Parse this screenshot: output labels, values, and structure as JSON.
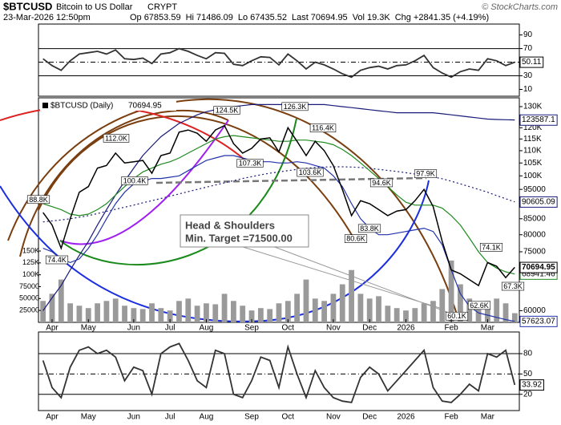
{
  "header": {
    "symbol": "$BTCUSD",
    "name": "Bitcoin to US Dollar",
    "exchange": "CRYPT",
    "copyright": "© StockCharts.com",
    "date": "23-Mar-2026 12:50pm",
    "fields": [
      {
        "label": "Op",
        "value": 67853.59
      },
      {
        "label": "Hi",
        "value": 71486.09
      },
      {
        "label": "Lo",
        "value": 67435.52
      },
      {
        "label": "Last",
        "value": 70694.95
      },
      {
        "label": "Vol",
        "value": "19.3K"
      },
      {
        "label": "Chg",
        "value": "+2841.35 (+4.19%)"
      }
    ]
  },
  "chart_data": [
    {
      "type": "line",
      "log": true,
      "categories": [
        null,
        "Apr",
        null,
        null,
        null,
        "May",
        null,
        null,
        null,
        null,
        "Jun",
        null,
        null,
        null,
        "Jul",
        null,
        null,
        null,
        "Aug",
        null,
        null,
        null,
        null,
        "Sep",
        null,
        null,
        null,
        "Oct",
        null,
        null,
        null,
        null,
        "Nov",
        null,
        null,
        null,
        "Dec",
        null,
        null,
        null,
        "2026",
        null,
        null,
        null,
        null,
        "Feb",
        null,
        null,
        null,
        "Mar",
        null,
        null,
        null
      ],
      "series": [
        {
          "name": "$BTCUSD (Daily)",
          "color": "#000000",
          "values": [
            87000,
            83000,
            76000,
            85000,
            94000,
            96000,
            103000,
            104000,
            109000,
            105000,
            105500,
            106000,
            101000,
            108000,
            109000,
            118000,
            119000,
            117500,
            114000,
            119000,
            121000,
            113000,
            109000,
            111000,
            115000,
            115500,
            109500,
            120000,
            114000,
            108000,
            114000,
            110000,
            104000,
            95000,
            86000,
            91000,
            90000,
            88000,
            86000,
            87500,
            88000,
            91000,
            95000,
            89000,
            78000,
            70000,
            69000,
            67500,
            66000,
            72000,
            71000,
            68000,
            70694.95
          ]
        }
      ],
      "overlays": [
        {
          "color": "#1a1a7a",
          "style": "solid",
          "values": [
            60000,
            63000,
            66000,
            70000,
            74000,
            78000,
            83000,
            88000,
            93000,
            98000,
            103000,
            108000,
            112000,
            116000,
            119000,
            122000,
            124000,
            126000,
            127500,
            128500,
            129500,
            130000,
            130500,
            131000,
            131000,
            131000,
            131000,
            131000,
            131000,
            131000,
            131000,
            131000,
            130500,
            130000,
            129500,
            129000,
            128500,
            128000,
            127500,
            127000,
            127000,
            127000,
            127000,
            127000,
            126500,
            126000,
            125500,
            125000,
            124500,
            124000,
            123800,
            123700,
            123587.1
          ]
        },
        {
          "color": "#1a1a7a",
          "style": "dotted",
          "values": [
            84000,
            84300,
            84600,
            85000,
            85500,
            86000,
            86700,
            87400,
            88100,
            88800,
            89500,
            90300,
            91000,
            91800,
            92600,
            93400,
            94200,
            95000,
            95800,
            96600,
            97400,
            98200,
            99000,
            99700,
            100400,
            101000,
            101500,
            102000,
            102500,
            102900,
            103200,
            103400,
            103500,
            103500,
            103400,
            103200,
            102900,
            102500,
            102100,
            101700,
            101200,
            100700,
            100200,
            99600,
            98900,
            98000,
            97000,
            96000,
            95000,
            94000,
            92800,
            91700,
            90605.09
          ]
        },
        {
          "color": "#1f8a1f",
          "style": "solid",
          "values": [
            90000,
            89000,
            88000,
            86500,
            86000,
            86500,
            88000,
            90000,
            93000,
            96000,
            99000,
            101500,
            103000,
            104500,
            105500,
            107000,
            109000,
            111000,
            113000,
            115000,
            116000,
            116500,
            116000,
            115500,
            115000,
            114500,
            114000,
            114000,
            114500,
            114500,
            114000,
            113500,
            112500,
            110500,
            108000,
            105000,
            102000,
            99000,
            96000,
            93000,
            90500,
            89500,
            89500,
            89500,
            88500,
            86000,
            83000,
            79000,
            75000,
            72000,
            70500,
            69500,
            68941.46
          ]
        },
        {
          "color": "#2233aa",
          "style": "solid",
          "values": [
            76000,
            75000,
            73000,
            72000,
            73000,
            76000,
            80000,
            85000,
            90000,
            94000,
            97000,
            98000,
            99000,
            99000,
            99500,
            100000,
            102000,
            104000,
            106000,
            107000,
            108000,
            108000,
            107000,
            106000,
            105500,
            105500,
            105000,
            105000,
            105500,
            105000,
            104000,
            103000,
            100000,
            96000,
            90000,
            85000,
            82000,
            80000,
            80000,
            80500,
            81000,
            81500,
            82000,
            81000,
            77000,
            70000,
            64000,
            61000,
            59500,
            59000,
            58500,
            58000,
            57623.07
          ]
        }
      ],
      "volume": {
        "color": "#9a9a9a",
        "values": [
          45000,
          60000,
          90000,
          40000,
          35000,
          30000,
          40000,
          45000,
          50000,
          35000,
          30000,
          28000,
          40000,
          30000,
          25000,
          45000,
          50000,
          35000,
          40000,
          38000,
          60000,
          45000,
          35000,
          25000,
          30000,
          28000,
          40000,
          45000,
          60000,
          90000,
          50000,
          45000,
          60000,
          80000,
          110000,
          60000,
          50000,
          55000,
          35000,
          30000,
          25000,
          30000,
          40000,
          45000,
          70000,
          130000,
          80000,
          50000,
          40000,
          45000,
          50000,
          40000,
          19300
        ],
        "ylim": [
          0,
          472000
        ],
        "yticks": [
          {
            "value": 150000,
            "label": "150K"
          },
          {
            "value": 125000,
            "label": "125K"
          },
          {
            "value": 100000,
            "label": "100K"
          },
          75000,
          50000,
          25000
        ]
      },
      "ylim": [
        57400,
        134400
      ],
      "yticks": [
        {
          "value": 130000,
          "label": "130K"
        },
        {
          "value": 120000,
          "label": "120K"
        },
        {
          "value": 115000,
          "label": "115K"
        },
        {
          "value": 110000,
          "label": "110K"
        },
        {
          "value": 105000,
          "label": "105K"
        },
        {
          "value": 100000,
          "label": "100K"
        },
        95000,
        85000,
        80000,
        75000,
        60000
      ],
      "price_labels": [
        {
          "value": 88800,
          "label": "88.8K"
        },
        {
          "value": 74400,
          "label": "74.4K"
        },
        {
          "value": 112000,
          "label": "112.0K"
        },
        {
          "value": 100400,
          "label": "100.4K"
        },
        {
          "value": 124500,
          "label": "124.5K"
        },
        {
          "value": 107300,
          "label": "107.3K"
        },
        {
          "value": 126300,
          "label": "126.3K"
        },
        {
          "value": 103600,
          "label": "103.6K"
        },
        {
          "value": 116400,
          "label": "116.4K"
        },
        {
          "value": 94600,
          "label": "94.6K"
        },
        {
          "value": 80600,
          "label": "80.6K"
        },
        {
          "value": 83800,
          "label": "83.8K"
        },
        {
          "value": 97900,
          "label": "97.9K"
        },
        {
          "value": 60100,
          "label": "60.1K"
        },
        {
          "value": 62600,
          "label": "62.6K"
        },
        {
          "value": 74100,
          "label": "74.1K"
        },
        {
          "value": 67300,
          "label": "67.3K"
        }
      ],
      "annotations": [
        "Head & Shoulders",
        "Min. Target =71500.00"
      ]
    },
    {
      "type": "line",
      "color": "#333333",
      "values": [
        55,
        45,
        38,
        52,
        62,
        64,
        66,
        62,
        68,
        55,
        54,
        56,
        48,
        62,
        64,
        70,
        66,
        60,
        55,
        64,
        63,
        47,
        45,
        52,
        58,
        57,
        46,
        62,
        52,
        40,
        50,
        46,
        40,
        33,
        28,
        38,
        42,
        44,
        40,
        45,
        46,
        52,
        60,
        42,
        34,
        28,
        36,
        40,
        38,
        55,
        52,
        45,
        50.11
      ],
      "ylim": [
        0,
        106
      ],
      "yticks": [
        90,
        70,
        50,
        30,
        10
      ],
      "lines": [
        {
          "value": 70,
          "style": "solid"
        },
        {
          "value": 50,
          "style": "dashdot"
        },
        {
          "value": 30,
          "style": "solid"
        }
      ]
    },
    {
      "type": "line",
      "color": "#333333",
      "values": [
        70,
        30,
        15,
        60,
        85,
        90,
        80,
        85,
        75,
        40,
        60,
        55,
        20,
        80,
        90,
        95,
        70,
        40,
        30,
        85,
        80,
        20,
        15,
        40,
        75,
        70,
        30,
        90,
        50,
        15,
        55,
        30,
        15,
        10,
        8,
        45,
        60,
        50,
        25,
        40,
        55,
        70,
        85,
        30,
        10,
        8,
        20,
        35,
        25,
        80,
        75,
        85,
        33.92
      ],
      "ylim": [
        -4,
        112
      ],
      "yticks": [
        80,
        50,
        20
      ],
      "lines": [
        {
          "value": 80,
          "style": "solid"
        },
        {
          "value": 50,
          "style": "dashdot"
        },
        {
          "value": 20,
          "style": "solid"
        }
      ]
    }
  ]
}
